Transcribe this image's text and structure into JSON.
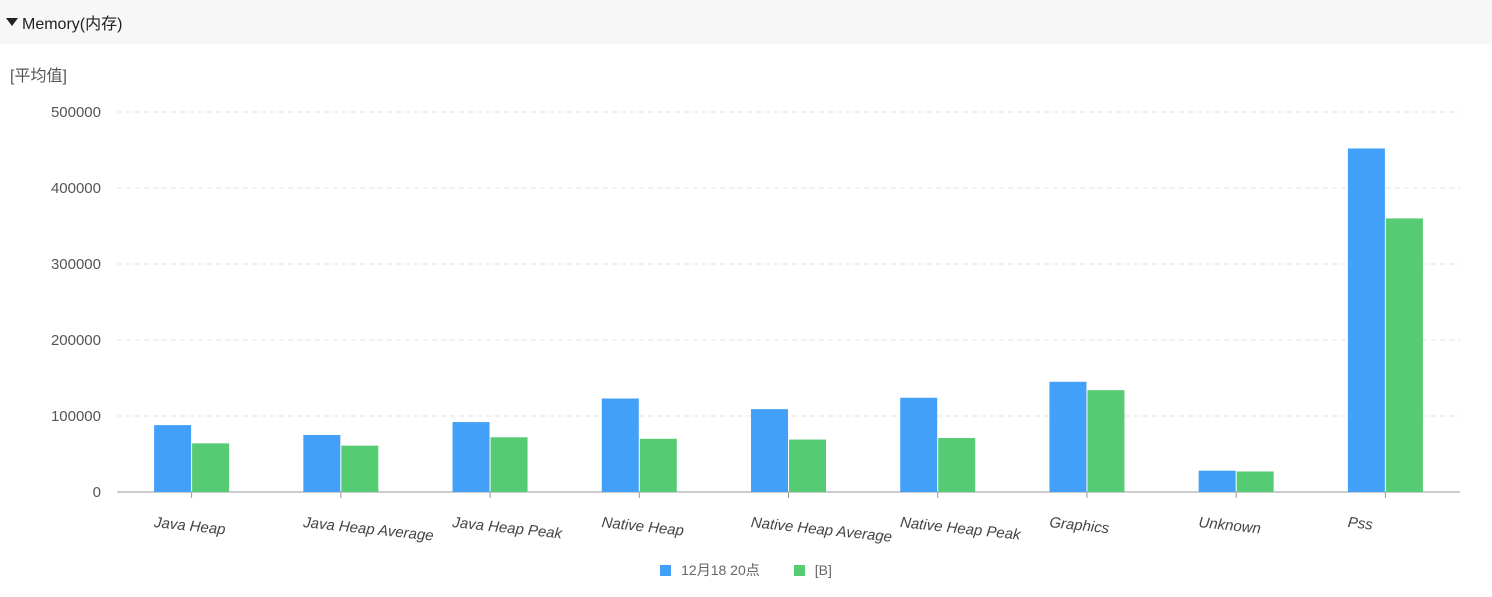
{
  "section": {
    "title": "Memory(内存)",
    "toggle_icon": "caret-down-icon"
  },
  "chart_data": {
    "type": "bar",
    "ylabel": "[平均值]",
    "ylim": [
      0,
      500000
    ],
    "yticks": [
      "0",
      "100000",
      "200000",
      "300000",
      "400000",
      "500000"
    ],
    "grid": true,
    "legend_position": "bottom",
    "categories": [
      "Java Heap",
      "Java Heap Average",
      "Java Heap Peak",
      "Native Heap",
      "Native Heap Average",
      "Native Heap Peak",
      "Graphics",
      "Unknown",
      "Pss"
    ],
    "series": [
      {
        "name": "12月18 20点",
        "color": "#42a0f9",
        "values": [
          88000,
          75000,
          92000,
          123000,
          109000,
          124000,
          145000,
          28000,
          452000
        ]
      },
      {
        "name": "[B]",
        "color": "#55cb73",
        "values": [
          64000,
          61000,
          72000,
          70000,
          69000,
          71000,
          134000,
          27000,
          360000
        ]
      }
    ]
  }
}
